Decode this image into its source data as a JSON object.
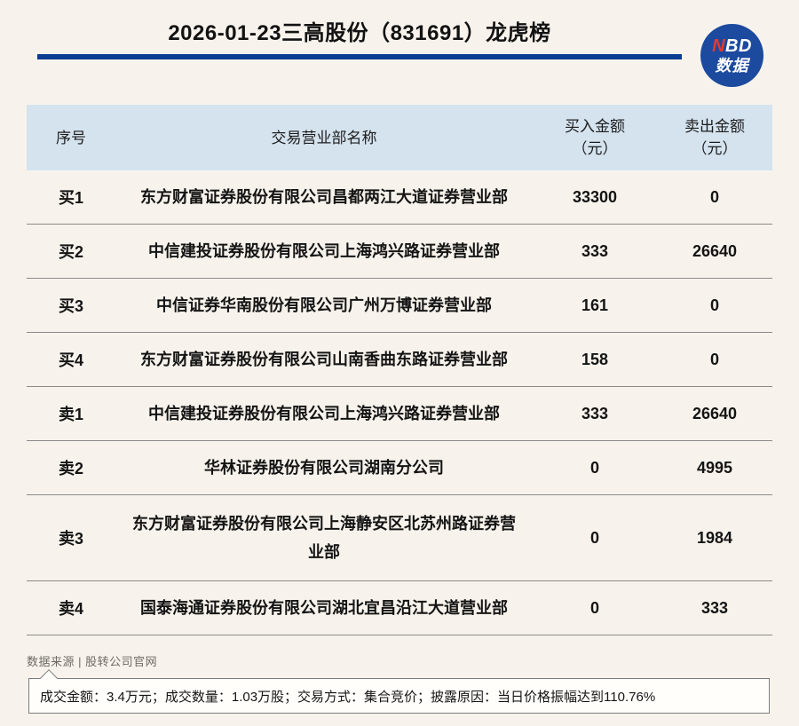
{
  "header": {
    "title": "2026-01-23三高股份（831691）龙虎榜",
    "logo": {
      "n": "N",
      "bd": "BD",
      "bottom": "数据"
    }
  },
  "table": {
    "columns": [
      {
        "label": "序号"
      },
      {
        "label": "交易营业部名称"
      },
      {
        "label": "买入金额",
        "unit": "（元）"
      },
      {
        "label": "卖出金额",
        "unit": "（元）"
      }
    ],
    "rows": [
      {
        "seq": "买1",
        "name": "东方财富证券股份有限公司昌都两江大道证券营业部",
        "buy": "33300",
        "sell": "0"
      },
      {
        "seq": "买2",
        "name": "中信建投证券股份有限公司上海鸿兴路证券营业部",
        "buy": "333",
        "sell": "26640"
      },
      {
        "seq": "买3",
        "name": "中信证券华南股份有限公司广州万博证券营业部",
        "buy": "161",
        "sell": "0"
      },
      {
        "seq": "买4",
        "name": "东方财富证券股份有限公司山南香曲东路证券营业部",
        "buy": "158",
        "sell": "0"
      },
      {
        "seq": "卖1",
        "name": "中信建投证券股份有限公司上海鸿兴路证券营业部",
        "buy": "333",
        "sell": "26640"
      },
      {
        "seq": "卖2",
        "name": "华林证券股份有限公司湖南分公司",
        "buy": "0",
        "sell": "4995"
      },
      {
        "seq": "卖3",
        "name": "东方财富证券股份有限公司上海静安区北苏州路证券营业部",
        "buy": "0",
        "sell": "1984"
      },
      {
        "seq": "卖4",
        "name": "国泰海通证券股份有限公司湖北宜昌沿江大道营业部",
        "buy": "0",
        "sell": "333"
      }
    ]
  },
  "footer": {
    "source": "数据来源 | 股转公司官网",
    "note": "成交金额：3.4万元；成交数量：1.03万股；交易方式：集合竞价；披露原因：当日价格振幅达到110.76%"
  },
  "colors": {
    "page_background": "#f7f3ec",
    "table_header_background": "#d5e3ef",
    "accent_blue": "#0a3d8f",
    "logo_blue": "#1b4a9e",
    "logo_red": "#e8392f",
    "divider_gray": "#8a8a8a",
    "source_text_gray": "#6e6a63"
  },
  "chart_data": {
    "type": "table",
    "title": "2026-01-23三高股份（831691）龙虎榜",
    "columns": [
      "序号",
      "交易营业部名称",
      "买入金额（元）",
      "卖出金额（元）"
    ],
    "rows": [
      [
        "买1",
        "东方财富证券股份有限公司昌都两江大道证券营业部",
        33300,
        0
      ],
      [
        "买2",
        "中信建投证券股份有限公司上海鸿兴路证券营业部",
        333,
        26640
      ],
      [
        "买3",
        "中信证券华南股份有限公司广州万博证券营业部",
        161,
        0
      ],
      [
        "买4",
        "东方财富证券股份有限公司山南香曲东路证券营业部",
        158,
        0
      ],
      [
        "卖1",
        "中信建投证券股份有限公司上海鸿兴路证券营业部",
        333,
        26640
      ],
      [
        "卖2",
        "华林证券股份有限公司湖南分公司",
        0,
        4995
      ],
      [
        "卖3",
        "东方财富证券股份有限公司上海静安区北苏州路证券营业部",
        0,
        1984
      ],
      [
        "卖4",
        "国泰海通证券股份有限公司湖北宜昌沿江大道营业部",
        0,
        333
      ]
    ],
    "note": "成交金额：3.4万元；成交数量：1.03万股；交易方式：集合竞价；披露原因：当日价格振幅达到110.76%",
    "source": "数据来源 | 股转公司官网"
  }
}
